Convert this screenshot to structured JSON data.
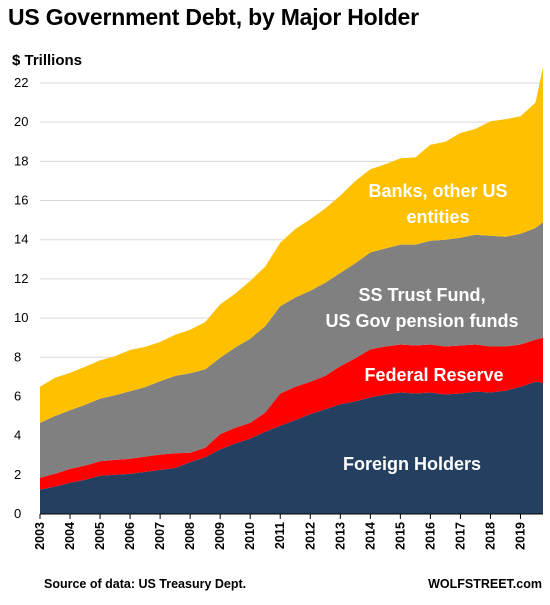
{
  "title": "US Government Debt, by Major Holder",
  "unit_label": "$ Trillions",
  "source": "Source of data: US Treasury Dept.",
  "brand": "WOLFSTREET.com",
  "colors": {
    "foreign": "#243f60",
    "fed": "#ff0000",
    "trust": "#808080",
    "banks": "#ffc000",
    "series_label_light": "#ffffff",
    "series_label_dark": "#000000"
  },
  "chart_data": {
    "type": "area",
    "stacked": true,
    "title": "US Government Debt, by Major Holder",
    "ylabel": "$ Trillions",
    "ylim": [
      0,
      22
    ],
    "yticks": [
      0,
      2,
      4,
      6,
      8,
      10,
      12,
      14,
      16,
      18,
      20,
      22
    ],
    "grid": "horizontal",
    "x_tick_labels": [
      "2003",
      "2004",
      "2005",
      "2006",
      "2007",
      "2008",
      "2009",
      "2010",
      "2011",
      "2012",
      "2013",
      "2014",
      "2015",
      "2016",
      "2017",
      "2018",
      "2019"
    ],
    "x": [
      2003.0,
      2003.5,
      2004.0,
      2004.5,
      2005.0,
      2005.5,
      2006.0,
      2006.5,
      2007.0,
      2007.5,
      2008.0,
      2008.5,
      2009.0,
      2009.5,
      2010.0,
      2010.5,
      2011.0,
      2011.5,
      2012.0,
      2012.5,
      2013.0,
      2013.5,
      2014.0,
      2014.5,
      2015.0,
      2015.5,
      2016.0,
      2016.5,
      2017.0,
      2017.5,
      2018.0,
      2018.5,
      2019.0,
      2019.5,
      2019.75
    ],
    "series": [
      {
        "name": "Foreign Holders",
        "label_lines": [
          "Foreign Holders"
        ],
        "color_key": "foreign",
        "values": [
          1.25,
          1.4,
          1.6,
          1.75,
          1.95,
          2.0,
          2.05,
          2.15,
          2.25,
          2.35,
          2.65,
          2.9,
          3.3,
          3.6,
          3.85,
          4.2,
          4.5,
          4.8,
          5.1,
          5.35,
          5.6,
          5.75,
          5.95,
          6.1,
          6.2,
          6.15,
          6.2,
          6.1,
          6.15,
          6.25,
          6.2,
          6.3,
          6.5,
          6.75,
          6.7
        ]
      },
      {
        "name": "Federal Reserve",
        "label_lines": [
          "Federal Reserve"
        ],
        "color_key": "fed",
        "values": [
          0.6,
          0.65,
          0.7,
          0.72,
          0.74,
          0.76,
          0.77,
          0.78,
          0.78,
          0.75,
          0.48,
          0.48,
          0.78,
          0.8,
          0.8,
          0.98,
          1.65,
          1.7,
          1.65,
          1.7,
          1.95,
          2.2,
          2.45,
          2.45,
          2.45,
          2.45,
          2.45,
          2.45,
          2.45,
          2.4,
          2.35,
          2.25,
          2.15,
          2.15,
          2.3
        ]
      },
      {
        "name": "SS Trust Fund, US Gov pension funds",
        "label_lines": [
          "SS Trust Fund,",
          "US Gov pension funds"
        ],
        "color_key": "trust",
        "values": [
          2.8,
          2.95,
          3.0,
          3.1,
          3.2,
          3.3,
          3.45,
          3.55,
          3.75,
          3.95,
          4.05,
          4.0,
          3.9,
          4.1,
          4.3,
          4.4,
          4.45,
          4.55,
          4.65,
          4.75,
          4.75,
          4.85,
          4.95,
          5.0,
          5.1,
          5.15,
          5.3,
          5.45,
          5.5,
          5.6,
          5.65,
          5.6,
          5.65,
          5.7,
          5.9
        ]
      },
      {
        "name": "Banks, other US entities",
        "label_lines": [
          "Banks, other US",
          "entities"
        ],
        "color_key": "banks",
        "values": [
          1.85,
          1.95,
          1.9,
          1.95,
          1.95,
          2.0,
          2.1,
          2.05,
          2.0,
          2.1,
          2.22,
          2.42,
          2.72,
          2.75,
          2.95,
          3.05,
          3.25,
          3.5,
          3.65,
          3.8,
          3.95,
          4.2,
          4.25,
          4.3,
          4.4,
          4.45,
          4.9,
          5.0,
          5.35,
          5.4,
          5.85,
          6.0,
          6.0,
          6.4,
          7.9
        ]
      }
    ]
  }
}
